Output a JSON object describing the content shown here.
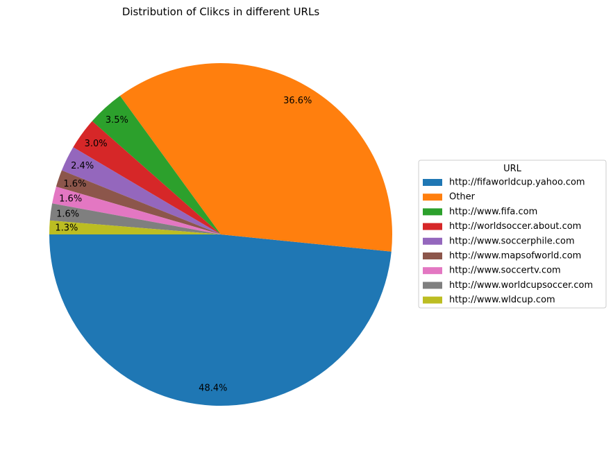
{
  "chart_data": {
    "type": "pie",
    "title": "Distribution of Clikcs in different URLs",
    "legend_title": "URL",
    "legend_position": "center-right",
    "start_angle_deg": 180,
    "direction": "counterclockwise",
    "slices": [
      {
        "label": "http://fifaworldcup.yahoo.com",
        "value": 48.4,
        "pct_text": "48.4%",
        "color": "#1f77b4"
      },
      {
        "label": "Other",
        "value": 36.6,
        "pct_text": "36.6%",
        "color": "#ff7f0e"
      },
      {
        "label": "http://www.fifa.com",
        "value": 3.5,
        "pct_text": "3.5%",
        "color": "#2ca02c"
      },
      {
        "label": "http://worldsoccer.about.com",
        "value": 3.0,
        "pct_text": "3.0%",
        "color": "#d62728"
      },
      {
        "label": "http://www.soccerphile.com",
        "value": 2.4,
        "pct_text": "2.4%",
        "color": "#9467bd"
      },
      {
        "label": "http://www.mapsofworld.com",
        "value": 1.6,
        "pct_text": "1.6%",
        "color": "#8c564b"
      },
      {
        "label": "http://www.soccertv.com",
        "value": 1.6,
        "pct_text": "1.6%",
        "color": "#e377c2"
      },
      {
        "label": "http://www.worldcupsoccer.com",
        "value": 1.6,
        "pct_text": "1.6%",
        "color": "#7f7f7f"
      },
      {
        "label": "http://www.wldcup.com",
        "value": 1.3,
        "pct_text": "1.3%",
        "color": "#bcbd22"
      }
    ]
  }
}
